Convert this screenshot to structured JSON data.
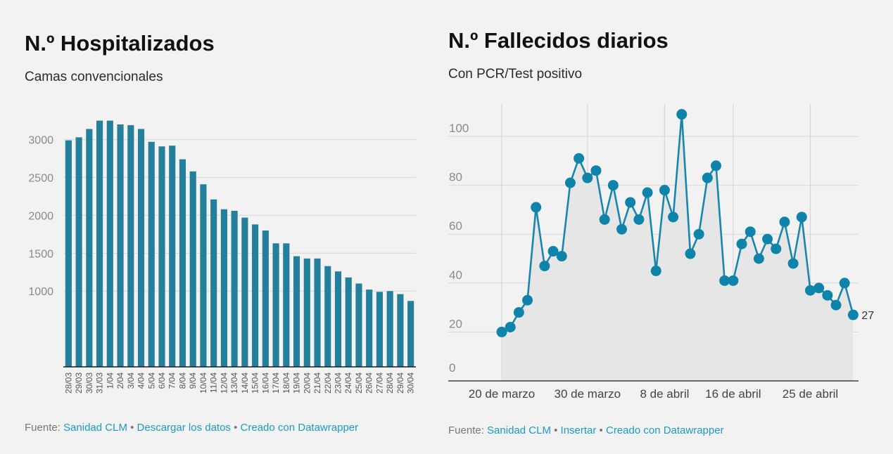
{
  "left": {
    "title": "N.º Hospitalizados",
    "subtitle": "Camas convencionales",
    "source": {
      "prefix": "Fuente: ",
      "link1": "Sanidad CLM",
      "link2": "Descargar los datos",
      "link3": "Creado con Datawrapper",
      "separator": " • "
    }
  },
  "right": {
    "title": "N.º Fallecidos diarios",
    "subtitle": "Con PCR/Test positivo",
    "source": {
      "prefix": "Fuente: ",
      "link1": "Sanidad CLM",
      "link2": "Insertar",
      "link3": "Creado con Datawrapper",
      "separator": " • "
    }
  },
  "colors": {
    "bar": "#24809a",
    "line": "#1a85ad",
    "dot": "#0f84ab",
    "area": "#e6e6e6",
    "grid": "#d6d6d6",
    "tick_text": "#8a8a8a"
  },
  "chart_data": [
    {
      "type": "bar",
      "title": "N.º Hospitalizados",
      "subtitle": "Camas convencionales",
      "categories": [
        "28/03",
        "29/03",
        "30/03",
        "31/03",
        "1/04",
        "2/04",
        "3/04",
        "4/04",
        "5/04",
        "6/04",
        "7/04",
        "8/04",
        "9/04",
        "10/04",
        "11/04",
        "12/04",
        "13/04",
        "14/04",
        "15/04",
        "16/04",
        "17/04",
        "18/04",
        "19/04",
        "20/04",
        "21/04",
        "22/04",
        "23/04",
        "24/04",
        "25/04",
        "26/04",
        "27/04",
        "28/04",
        "29/04",
        "30/04"
      ],
      "values": [
        2990,
        3030,
        3140,
        3250,
        3250,
        3200,
        3190,
        3140,
        2970,
        2910,
        2920,
        2740,
        2580,
        2410,
        2210,
        2080,
        2060,
        1970,
        1880,
        1800,
        1630,
        1630,
        1460,
        1430,
        1430,
        1330,
        1260,
        1180,
        1100,
        1020,
        990,
        1000,
        960,
        870
      ],
      "yticks": [
        "1000",
        "1500",
        "2000",
        "2500",
        "3000"
      ],
      "ylim": [
        0,
        3400
      ],
      "grid": true
    },
    {
      "type": "line",
      "title": "N.º Fallecidos diarios",
      "subtitle": "Con PCR/Test positivo",
      "x": [
        "20/03",
        "21/03",
        "22/03",
        "23/03",
        "24/03",
        "25/03",
        "26/03",
        "27/03",
        "28/03",
        "29/03",
        "30/03",
        "31/03",
        "1/04",
        "2/04",
        "3/04",
        "4/04",
        "5/04",
        "6/04",
        "7/04",
        "8/04",
        "9/04",
        "10/04",
        "11/04",
        "12/04",
        "13/04",
        "14/04",
        "15/04",
        "16/04",
        "17/04",
        "18/04",
        "19/04",
        "20/04",
        "21/04",
        "22/04",
        "23/04",
        "24/04",
        "25/04",
        "26/04",
        "27/04",
        "28/04",
        "29/04",
        "30/04"
      ],
      "values": [
        20,
        22,
        28,
        33,
        71,
        47,
        53,
        51,
        81,
        91,
        83,
        86,
        66,
        80,
        62,
        73,
        66,
        77,
        45,
        78,
        67,
        109,
        52,
        60,
        83,
        88,
        41,
        41,
        56,
        61,
        50,
        58,
        54,
        65,
        48,
        67,
        37,
        38,
        35,
        31,
        40,
        27
      ],
      "xticks": [
        "20 de marzo",
        "30 de marzo",
        "8 de abril",
        "16 de abril",
        "25 de abril"
      ],
      "yticks": [
        "0",
        "20",
        "40",
        "60",
        "80",
        "100"
      ],
      "ylim": [
        0,
        113
      ],
      "last_label": "27",
      "grid": true
    }
  ]
}
